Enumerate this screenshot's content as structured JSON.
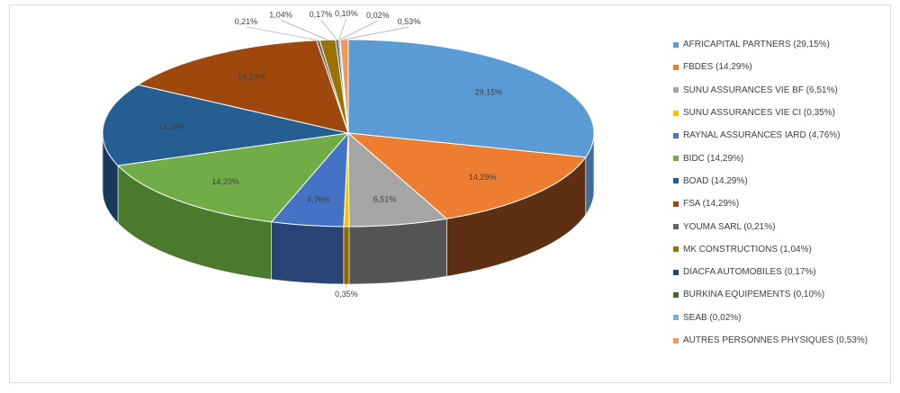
{
  "chart_data": {
    "type": "pie",
    "style": "3d",
    "title": "",
    "legend_position": "right",
    "slices": [
      {
        "name": "AFRICAPITAL PARTNERS",
        "value": 29.15,
        "label": "29,15%",
        "legend": "AFRICAPITAL PARTNERS (29,15%)",
        "color": "#5b9bd5",
        "side": "#3e6e99"
      },
      {
        "name": "FBDES",
        "value": 14.29,
        "label": "14,29%",
        "legend": "FBDES (14,29%)",
        "color": "#ed7d31",
        "side": "#5e2f12"
      },
      {
        "name": "SUNU ASSURANCES VIE BF",
        "value": 6.51,
        "label": "6,51%",
        "legend": "SUNU ASSURANCES VIE BF (6,51%)",
        "color": "#a5a5a5",
        "side": "#555555"
      },
      {
        "name": "SUNU ASSURANCES VIE CI",
        "value": 0.35,
        "label": "0,35%",
        "legend": "SUNU ASSURANCES VIE CI (0,35%)",
        "color": "#ffc000",
        "side": "#8a6a00"
      },
      {
        "name": "RAYNAL ASSURANCES IARD",
        "value": 4.76,
        "label": "4,76%",
        "legend": "RAYNAL ASSURANCES IARD (4,76%)",
        "color": "#4472c4",
        "side": "#2a4478"
      },
      {
        "name": "BIDC",
        "value": 14.29,
        "label": "14,29%",
        "legend": "BIDC (14,29%)",
        "color": "#70ad47",
        "side": "#4a7a2e"
      },
      {
        "name": "BOAD",
        "value": 14.29,
        "label": "14,29%",
        "legend": "BOAD (14,29%)",
        "color": "#255e91",
        "side": "#173a5a"
      },
      {
        "name": "FSA",
        "value": 14.29,
        "label": "14,29%",
        "legend": "FSA (14,29%)",
        "color": "#9e480e",
        "side": "#5e2a08"
      },
      {
        "name": "YOUMA SARL",
        "value": 0.21,
        "label": "0,21%",
        "legend": "YOUMA SARL (0,21%)",
        "color": "#636363",
        "side": "#3a3a3a"
      },
      {
        "name": "MK CONSTRUCTIONS",
        "value": 1.04,
        "label": "1,04%",
        "legend": "MK CONSTRUCTIONS (1,04%)",
        "color": "#997300",
        "side": "#5e4700"
      },
      {
        "name": "DIACFA AUTOMOBILES",
        "value": 0.17,
        "label": "0,17%",
        "legend": "DIACFA AUTOMOBILES (0,17%)",
        "color": "#264478",
        "side": "#162848"
      },
      {
        "name": "BURKINA EQUIPEMENTS",
        "value": 0.1,
        "label": "0,10%",
        "legend": "BURKINA EQUIPEMENTS (0,10%)",
        "color": "#43682b",
        "side": "#2a421b"
      },
      {
        "name": "SEAB",
        "value": 0.02,
        "label": "0,02%",
        "legend": "SEAB (0,02%)",
        "color": "#7cafdd",
        "side": "#4c7399"
      },
      {
        "name": "AUTRES PERSONNES PHYSIQUES",
        "value": 0.53,
        "label": "0,53%",
        "legend": "AUTRES PERSONNES PHYSIQUES (0,53%)",
        "color": "#f1975a",
        "side": "#9a5a30"
      }
    ]
  }
}
